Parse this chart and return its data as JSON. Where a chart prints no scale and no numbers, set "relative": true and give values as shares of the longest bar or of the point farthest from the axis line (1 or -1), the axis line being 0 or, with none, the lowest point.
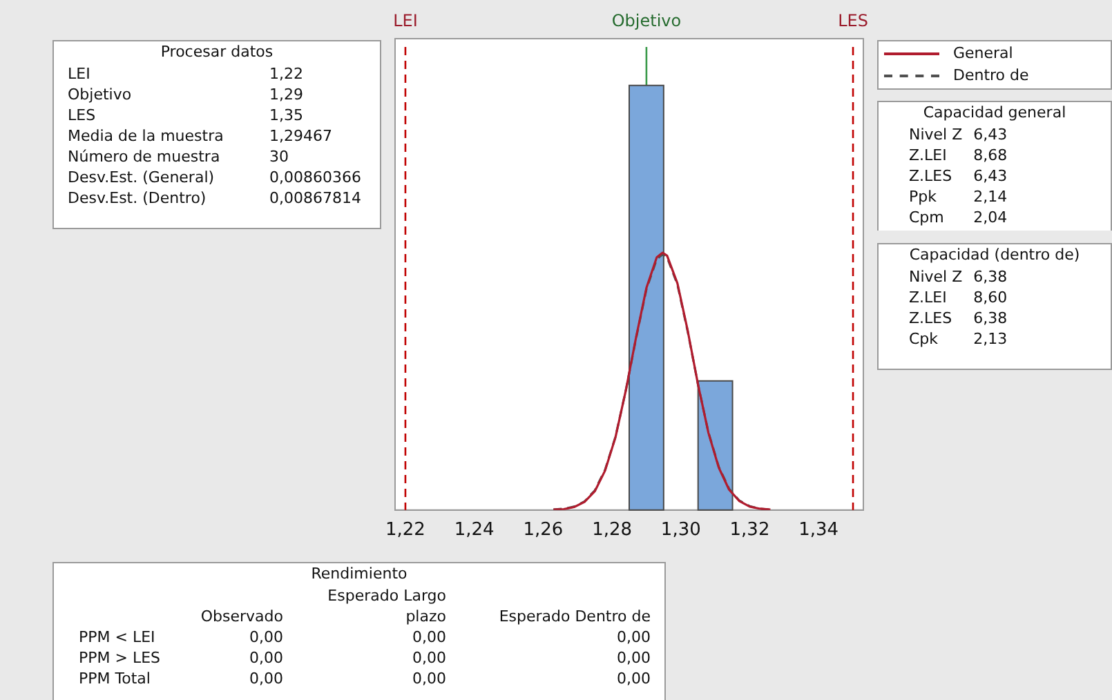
{
  "chart_data": {
    "type": "histogram",
    "relative": true,
    "bins": [
      1.285,
      1.295,
      1.305,
      1.315
    ],
    "values": [
      1,
      0,
      0.304
    ],
    "color": "#7ba7db",
    "series": [
      {
        "name": "General",
        "type": "line",
        "color": "#b01c2e",
        "line_style": "solid",
        "x": [
          1.263,
          1.266,
          1.269,
          1.272,
          1.275,
          1.278,
          1.281,
          1.284,
          1.287,
          1.29,
          1.293,
          1.2947,
          1.296,
          1.299,
          1.302,
          1.305,
          1.308,
          1.311,
          1.314,
          1.317,
          1.32,
          1.323,
          1.326
        ],
        "values": [
          0.001,
          0.002,
          0.007,
          0.019,
          0.044,
          0.093,
          0.171,
          0.281,
          0.407,
          0.523,
          0.595,
          0.606,
          0.599,
          0.534,
          0.422,
          0.295,
          0.182,
          0.1,
          0.048,
          0.021,
          0.008,
          0.003,
          0.001
        ]
      },
      {
        "name": "Dentro de",
        "type": "line",
        "color": "#505050",
        "line_style": "dashed",
        "x": [
          1.263,
          1.266,
          1.269,
          1.272,
          1.275,
          1.278,
          1.281,
          1.284,
          1.287,
          1.29,
          1.293,
          1.2947,
          1.296,
          1.299,
          1.302,
          1.305,
          1.308,
          1.311,
          1.314,
          1.317,
          1.32,
          1.323,
          1.326
        ],
        "values": [
          0.001,
          0.003,
          0.008,
          0.02,
          0.046,
          0.095,
          0.172,
          0.281,
          0.405,
          0.52,
          0.591,
          0.602,
          0.595,
          0.531,
          0.42,
          0.295,
          0.183,
          0.102,
          0.05,
          0.022,
          0.009,
          0.003,
          0.001
        ]
      }
    ],
    "xlim": [
      1.217,
      1.353
    ],
    "xticks": [
      {
        "value": 1.22,
        "label": "1,22"
      },
      {
        "value": 1.24,
        "label": "1,24"
      },
      {
        "value": 1.26,
        "label": "1,26"
      },
      {
        "value": 1.28,
        "label": "1,28"
      },
      {
        "value": 1.3,
        "label": "1,30"
      },
      {
        "value": 1.32,
        "label": "1,32"
      },
      {
        "value": 1.34,
        "label": "1,34"
      }
    ],
    "ref_lines": [
      {
        "axis": "x",
        "value": 1.22,
        "label": "LEI",
        "color": "#c00000",
        "line_style": "dashed"
      },
      {
        "axis": "x",
        "value": 1.29,
        "label": "Objetivo",
        "color": "#3a9a4a",
        "line_style": "solid"
      },
      {
        "axis": "x",
        "value": 1.35,
        "label": "LES",
        "color": "#c00000",
        "line_style": "dashed"
      }
    ],
    "legend": "top right",
    "grid": false,
    "annotations": [
      "Procesar datos",
      "LEI",
      "1,22",
      "Objetivo",
      "1,29",
      "LES",
      "1,35",
      "Media de la muestra",
      "1,29467",
      "Número de muestra",
      "30",
      "Desv.Est. (General)",
      "0,00860366",
      "Desv.Est. (Dentro)",
      "0,00867814",
      "Capacidad general",
      "Nivel Z",
      "6,43",
      "Z.LEI",
      "8,68",
      "Z.LES",
      "6,43",
      "Ppk",
      "2,14",
      "Cpm",
      "2,04",
      "Capacidad (dentro de)",
      "Nivel Z",
      "6,38",
      "Z.LEI",
      "8,60",
      "Z.LES",
      "6,38",
      "Cpk",
      "2,13",
      "Rendimiento",
      "Observado",
      "Esperado Largo plazo",
      "Esperado Dentro de",
      "PPM < LEI",
      "0,00",
      "0,00",
      "0,00",
      "PPM > LES",
      "0,00",
      "0,00",
      "0,00",
      "PPM Total",
      "0,00",
      "0,00",
      "0,00"
    ]
  }
}
